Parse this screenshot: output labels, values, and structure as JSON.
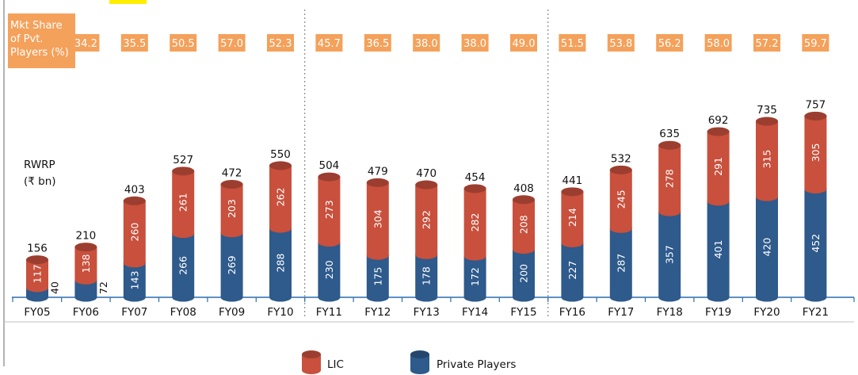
{
  "chart_data": {
    "type": "bar",
    "stacked": true,
    "categories": [
      "FY05",
      "FY06",
      "FY07",
      "FY08",
      "FY09",
      "FY10",
      "FY11",
      "FY12",
      "FY13",
      "FY14",
      "FY15",
      "FY16",
      "FY17",
      "FY18",
      "FY19",
      "FY20",
      "FY21"
    ],
    "series": [
      {
        "name": "Private Players",
        "values": [
          40,
          72,
          143,
          266,
          269,
          288,
          230,
          175,
          178,
          172,
          200,
          227,
          287,
          357,
          401,
          420,
          452
        ],
        "color": "#2e5a8c"
      },
      {
        "name": "LIC",
        "values": [
          117,
          138,
          260,
          261,
          203,
          262,
          273,
          304,
          292,
          282,
          208,
          214,
          245,
          278,
          291,
          315,
          305
        ],
        "color": "#c8503c"
      }
    ],
    "totals": [
      156,
      210,
      403,
      527,
      472,
      550,
      504,
      479,
      470,
      454,
      408,
      441,
      532,
      635,
      692,
      735,
      757
    ],
    "ylabel": "RWRP",
    "ylabel_unit": "(₹ bn)",
    "mkt_share_label": [
      "Mkt Share",
      "of Pvt.",
      "Players (%)"
    ],
    "mkt_share": [
      "34.2",
      "35.5",
      "50.5",
      "57.0",
      "52.3",
      "45.7",
      "36.5",
      "38.0",
      "38.0",
      "49.0",
      "51.5",
      "53.8",
      "56.2",
      "58.0",
      "57.2",
      "59.7"
    ],
    "dividers_after": [
      "FY10",
      "FY15"
    ],
    "legend": [
      "LIC",
      "Private Players"
    ],
    "colors": {
      "lic": "#c8503c",
      "private": "#2e5a8c",
      "badge": "#f4a15b",
      "highlight": "#ffee00"
    }
  }
}
